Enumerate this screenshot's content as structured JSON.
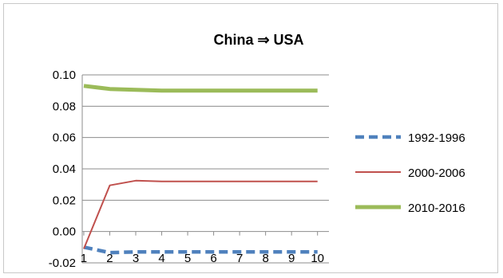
{
  "chart_data": {
    "type": "line",
    "title": "China ⇒ USA",
    "xlabel": "",
    "ylabel": "",
    "x": [
      1,
      2,
      3,
      4,
      5,
      6,
      7,
      8,
      9,
      10
    ],
    "xticks": [
      "1",
      "2",
      "3",
      "4",
      "5",
      "6",
      "7",
      "8",
      "9",
      "10"
    ],
    "ylim": [
      -0.02,
      0.1
    ],
    "yticks": [
      "-0.02",
      "0.00",
      "0.02",
      "0.04",
      "0.06",
      "0.08",
      "0.10"
    ],
    "ytick_values": [
      -0.02,
      0.0,
      0.02,
      0.04,
      0.06,
      0.08,
      0.1
    ],
    "grid": "horizontal",
    "legend_position": "right",
    "series": [
      {
        "name": "1992-1996",
        "color": "#4f81bd",
        "style": "dashed",
        "values": [
          -0.01,
          -0.0135,
          -0.013,
          -0.013,
          -0.013,
          -0.013,
          -0.013,
          -0.013,
          -0.013,
          -0.013
        ]
      },
      {
        "name": "2000-2006",
        "color": "#c0504d",
        "style": "solid",
        "values": [
          -0.011,
          0.0295,
          0.0325,
          0.032,
          0.032,
          0.032,
          0.032,
          0.032,
          0.032,
          0.032
        ]
      },
      {
        "name": "2010-2016",
        "color": "#9bbb59",
        "style": "solid-thick",
        "values": [
          0.093,
          0.091,
          0.0905,
          0.09,
          0.09,
          0.09,
          0.09,
          0.09,
          0.09,
          0.09
        ]
      }
    ]
  }
}
